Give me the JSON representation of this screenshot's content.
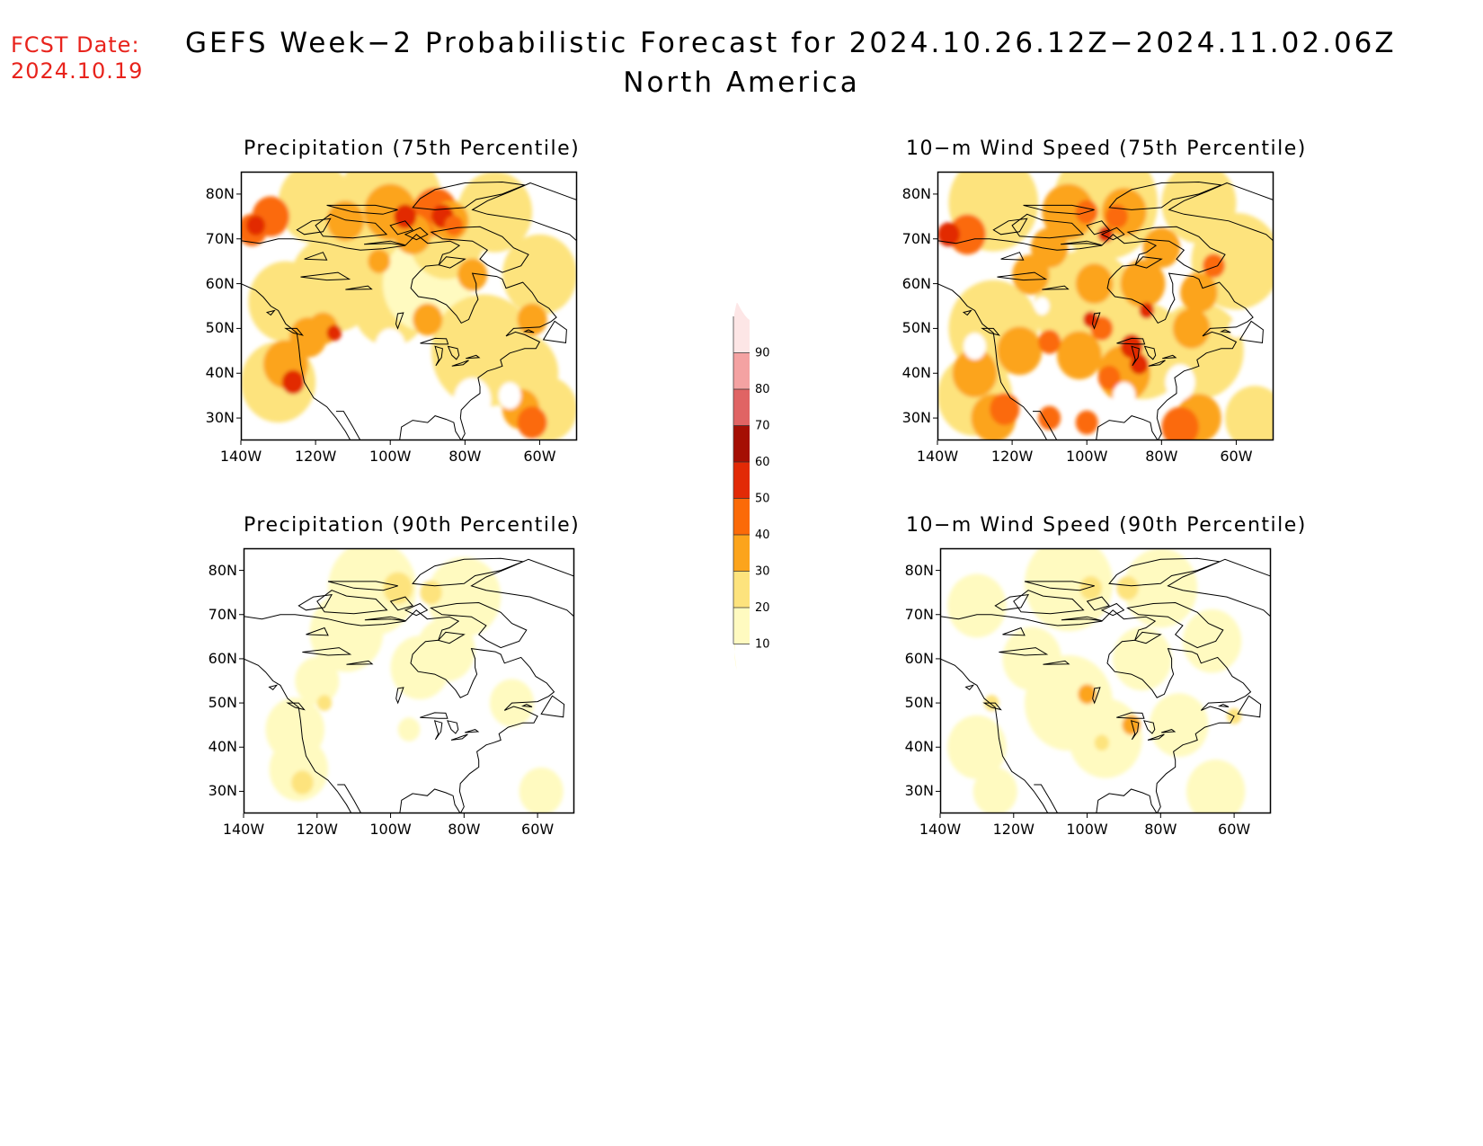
{
  "header": {
    "fcst_label": "FCST Date:",
    "fcst_date": "2024.10.19",
    "title": "GEFS Week−2 Probabilistic Forecast for 2024.10.26.12Z−2024.11.02.06Z",
    "subtitle": "North America"
  },
  "panels": [
    {
      "id": "precip75",
      "title": "Precipitation (75th Percentile)",
      "level": "high"
    },
    {
      "id": "wind75",
      "title": "10−m Wind Speed (75th Percentile)",
      "level": "high"
    },
    {
      "id": "precip90",
      "title": "Precipitation (90th Percentile)",
      "level": "low"
    },
    {
      "id": "wind90",
      "title": "10−m Wind Speed (90th Percentile)",
      "level": "low"
    }
  ],
  "axes": {
    "lat_labels": [
      "80N",
      "70N",
      "60N",
      "50N",
      "40N",
      "30N"
    ],
    "lon_labels": [
      "140W",
      "120W",
      "100W",
      "80W",
      "60W"
    ]
  },
  "colorbar": {
    "levels": [
      "10",
      "20",
      "30",
      "40",
      "50",
      "60",
      "70",
      "80",
      "90"
    ],
    "colors": [
      "#fffac0",
      "#fde37d",
      "#fca41c",
      "#fb6a08",
      "#e22a06",
      "#a50f04",
      "#e06464",
      "#f4a2a2",
      "#fde6e6"
    ]
  }
}
